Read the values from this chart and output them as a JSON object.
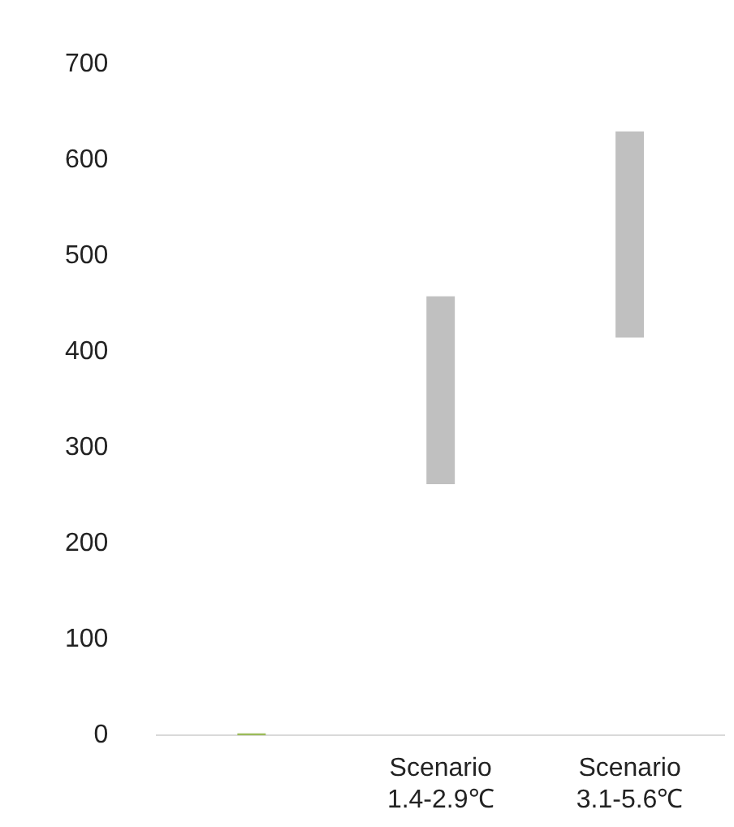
{
  "chart_data": {
    "type": "bar",
    "categories": [
      null,
      "Scenario 1.4-2.9℃",
      "Scenario 3.1-5.6℃"
    ],
    "base": [
      0,
      262,
      415
    ],
    "values": [
      2,
      196,
      215
    ],
    "colors": [
      "#9bbb59",
      "#c0c0c0",
      "#c0c0c0"
    ],
    "ylim": [
      0,
      700
    ],
    "yticks": [
      0,
      100,
      200,
      300,
      400,
      500,
      600,
      700
    ],
    "grid": false,
    "legend": false
  }
}
